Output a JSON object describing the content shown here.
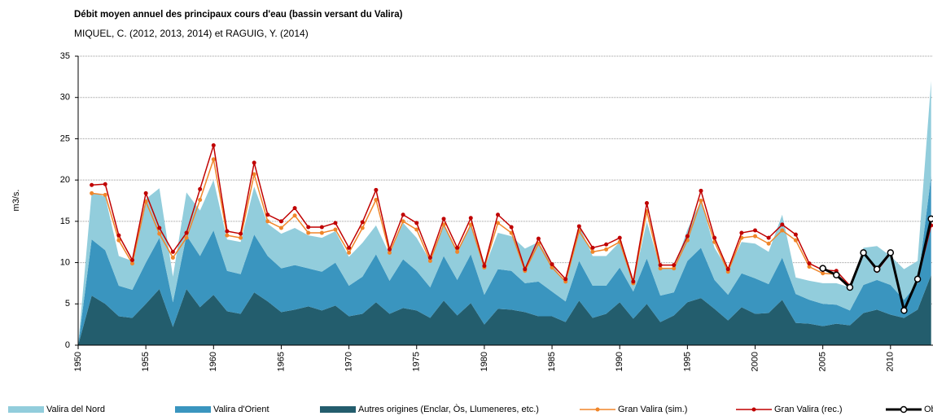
{
  "chart_data": {
    "type": "area",
    "title": "Débit moyen annuel des principaux cours d'eau (bassin versant du Valira)",
    "subtitle": "MIQUEL, C. (2012, 2013, 2014) et RAGUIG, Y. (2014)",
    "y_label": "m3/s.",
    "x": [
      1950,
      1951,
      1952,
      1953,
      1954,
      1955,
      1956,
      1957,
      1958,
      1959,
      1960,
      1961,
      1962,
      1963,
      1964,
      1965,
      1966,
      1967,
      1968,
      1969,
      1970,
      1971,
      1972,
      1973,
      1974,
      1975,
      1976,
      1977,
      1978,
      1979,
      1980,
      1981,
      1982,
      1983,
      1984,
      1985,
      1986,
      1987,
      1988,
      1989,
      1990,
      1991,
      1992,
      1993,
      1994,
      1995,
      1996,
      1997,
      1998,
      1999,
      2000,
      2001,
      2002,
      2003,
      2004,
      2005,
      2006,
      2007,
      2008,
      2009,
      2010,
      2011,
      2012,
      2013
    ],
    "xlim": [
      1950,
      2013
    ],
    "xticks": [
      1950,
      1955,
      1960,
      1965,
      1970,
      1975,
      1980,
      1985,
      1990,
      1995,
      2000,
      2005,
      2010
    ],
    "ylim": [
      0,
      35
    ],
    "yticks": [
      0,
      5,
      10,
      15,
      20,
      25,
      30,
      35
    ],
    "grid": true,
    "legend": "bottom",
    "series": [
      {
        "name": "Valira del Nord",
        "type": "area",
        "color": "#92cddc",
        "values": [
          0,
          5.7,
          6.5,
          3.6,
          3.5,
          7.7,
          6,
          3.1,
          5.2,
          5.5,
          6.1,
          3.8,
          3.9,
          5.8,
          3.9,
          4.2,
          4.5,
          4,
          4.1,
          3.8,
          3.5,
          4.1,
          3.5,
          3.2,
          4.4,
          4,
          3.2,
          4,
          3.3,
          3.5,
          3.2,
          4.4,
          4.2,
          4.2,
          4.8,
          3.3,
          2.2,
          4.3,
          3.6,
          3.6,
          3.1,
          1,
          4.5,
          3.3,
          2.8,
          3.8,
          5.7,
          3.9,
          3,
          3.8,
          4.2,
          3.9,
          5.2,
          2,
          2.3,
          2.5,
          2.6,
          2.8,
          4.5,
          4.1,
          3.5,
          3.7,
          2.7,
          11.5
        ]
      },
      {
        "name": "Valira d'Orient",
        "type": "area",
        "color": "#3a95bf",
        "values": [
          0,
          6.8,
          6.5,
          3.7,
          3.4,
          5,
          6.2,
          3,
          6.5,
          6.2,
          7.8,
          4.9,
          4.8,
          7,
          5.5,
          5.3,
          5.4,
          4.6,
          4.7,
          5.2,
          3.7,
          4.5,
          5.8,
          4,
          5.9,
          4.8,
          3.7,
          5.4,
          4.3,
          5.9,
          3.6,
          4.8,
          4.7,
          3.5,
          4.2,
          3,
          2.5,
          4.8,
          3.9,
          3.4,
          4.2,
          3.3,
          5.5,
          3.2,
          2.8,
          5,
          6.1,
          3.5,
          3.1,
          4.1,
          4.3,
          3.5,
          5.1,
          3.5,
          2.9,
          2.7,
          2.3,
          1.8,
          3.4,
          3.6,
          3.6,
          2.2,
          3.2,
          12
        ]
      },
      {
        "name": "Autres origines (Enclar, Òs, Llumeneres, etc.)",
        "type": "area",
        "color": "#235d6d",
        "values": [
          0,
          6,
          5,
          3.5,
          3.3,
          5,
          6.8,
          2.2,
          6.8,
          4.6,
          6.1,
          4.1,
          3.8,
          6.4,
          5.3,
          4,
          4.3,
          4.7,
          4.2,
          4.8,
          3.5,
          3.8,
          5.2,
          3.8,
          4.5,
          4.2,
          3.3,
          5.4,
          3.6,
          5.1,
          2.5,
          4.4,
          4.3,
          4,
          3.5,
          3.5,
          2.8,
          5.4,
          3.3,
          3.8,
          5.2,
          3.2,
          5,
          2.8,
          3.6,
          5.2,
          5.7,
          4.4,
          3,
          4.6,
          3.8,
          3.9,
          5.5,
          2.7,
          2.6,
          2.3,
          2.6,
          2.4,
          3.9,
          4.3,
          3.7,
          3.3,
          4.3,
          8.5
        ]
      },
      {
        "name": "Gran Valira (sim.)",
        "type": "line",
        "color": "#f0862a",
        "values": [
          null,
          18.4,
          18.2,
          12.7,
          9.9,
          17.4,
          13.5,
          10.6,
          13,
          17.6,
          22.5,
          13.3,
          13,
          20.7,
          15,
          14.2,
          15.7,
          13.6,
          13.6,
          14,
          11.2,
          14.2,
          17.6,
          11.2,
          15,
          14,
          10.2,
          14.6,
          11.3,
          14.6,
          9.4,
          14.8,
          13.6,
          9,
          12.3,
          9.4,
          7.7,
          13.8,
          11.3,
          11.6,
          12.5,
          7.5,
          16.2,
          9.3,
          9.3,
          12.7,
          17.5,
          12.5,
          8.9,
          13,
          13.2,
          12.3,
          13.9,
          12.7,
          9.5,
          8.7,
          8.6,
          7,
          null,
          null,
          null,
          null,
          null,
          null
        ]
      },
      {
        "name": "Gran Valira (rec.)",
        "type": "line",
        "color": "#c00000",
        "values": [
          null,
          19.4,
          19.5,
          13.3,
          10.3,
          18.4,
          14.2,
          11.3,
          13.6,
          18.9,
          24.2,
          13.8,
          13.5,
          22.1,
          15.8,
          15,
          16.6,
          14.3,
          14.3,
          14.8,
          11.8,
          14.9,
          18.8,
          11.6,
          15.8,
          14.8,
          10.6,
          15.3,
          11.8,
          15.4,
          9.6,
          15.8,
          14.3,
          9.2,
          12.9,
          9.8,
          8,
          14.4,
          11.8,
          12.2,
          13,
          7.7,
          17.2,
          9.7,
          9.7,
          13.2,
          18.7,
          13,
          9.2,
          13.6,
          13.9,
          13,
          14.6,
          13.4,
          9.9,
          9.1,
          9,
          7.2,
          11.2,
          9,
          11.1,
          4.2,
          7.9,
          14.5
        ]
      },
      {
        "name": "Obs.",
        "type": "obs",
        "color": "#000000",
        "values": [
          null,
          null,
          null,
          null,
          null,
          null,
          null,
          null,
          null,
          null,
          null,
          null,
          null,
          null,
          null,
          null,
          null,
          null,
          null,
          null,
          null,
          null,
          null,
          null,
          null,
          null,
          null,
          null,
          null,
          null,
          null,
          null,
          null,
          null,
          null,
          null,
          null,
          null,
          null,
          null,
          null,
          null,
          null,
          null,
          null,
          null,
          null,
          null,
          null,
          null,
          null,
          null,
          null,
          null,
          null,
          9.3,
          8.5,
          7,
          11.2,
          9.2,
          11.2,
          4.2,
          8,
          15.3
        ]
      }
    ]
  }
}
